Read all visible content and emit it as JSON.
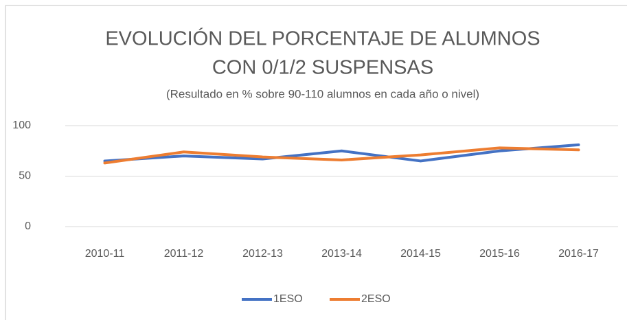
{
  "chart_data": {
    "type": "line",
    "title": [
      "EVOLUCIÓN DEL PORCENTAJE DE ALUMNOS",
      "CON 0/1/2 SUSPENSAS"
    ],
    "subtitle": "(Resultado en % sobre 90-110 alumnos en cada año o nivel)",
    "categories": [
      "2010-11",
      "2011-12",
      "2012-13",
      "2013-14",
      "2014-15",
      "2015-16",
      "2016-17"
    ],
    "series": [
      {
        "name": "1ESO",
        "color": "#4472c4",
        "values": [
          65,
          70,
          67,
          75,
          65,
          75,
          81
        ]
      },
      {
        "name": "2ESO",
        "color": "#ed7d31",
        "values": [
          63,
          74,
          69,
          66,
          71,
          78,
          76
        ]
      }
    ],
    "ylim": [
      0,
      100
    ],
    "yticks": [
      0,
      50,
      100
    ],
    "grid": true,
    "legend": "bottom"
  }
}
